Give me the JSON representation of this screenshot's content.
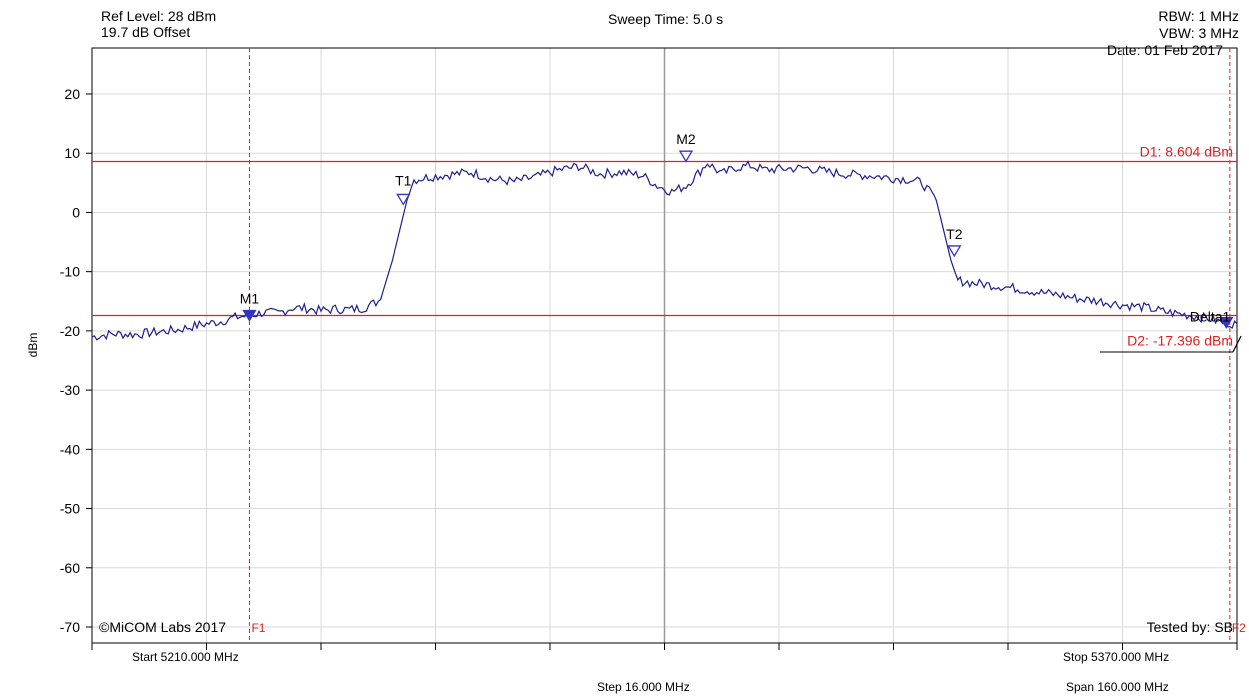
{
  "header": {
    "ref_level": "Ref Level: 28 dBm",
    "offset": "19.7 dB Offset",
    "sweep_time": "Sweep Time: 5.0 s",
    "rbw": "RBW: 1 MHz",
    "vbw": "VBW: 3 MHz",
    "date": "Date: 01 Feb 2017"
  },
  "footer": {
    "start": "Start 5210.000 MHz",
    "stop": "Stop 5370.000 MHz",
    "step": "Step 16.000 MHz",
    "span": "Span 160.000 MHz",
    "copyright": "©MiCOM Labs 2017",
    "tested_by": "Tested by: SB"
  },
  "colors": {
    "trace": "#1f1f8f",
    "marker": "#3333cc",
    "limit": "#e02020",
    "grid": "#d9d9d9",
    "center": "#9a9a9a"
  },
  "chart_data": {
    "type": "line",
    "title": "",
    "xlabel": "",
    "ylabel": "dBm",
    "xlim": [
      5210,
      5370
    ],
    "ylim": [
      -73,
      28
    ],
    "yticks": [
      20,
      10,
      0,
      -10,
      -20,
      -30,
      -40,
      -50,
      -60,
      -70
    ],
    "ytick_labels": [
      "20",
      "10",
      "0",
      "-10",
      "-20",
      "-30",
      "-40",
      "-50",
      "-60",
      "-70"
    ],
    "grid": true,
    "trace_points": [
      [
        5210,
        -21.0
      ],
      [
        5213,
        -20.5
      ],
      [
        5216,
        -20.6
      ],
      [
        5219,
        -20.2
      ],
      [
        5222,
        -19.8
      ],
      [
        5225,
        -19.0
      ],
      [
        5228,
        -18.4
      ],
      [
        5230,
        -17.7
      ],
      [
        5232,
        -17.4
      ],
      [
        5234,
        -16.9
      ],
      [
        5236,
        -17.0
      ],
      [
        5238,
        -16.1
      ],
      [
        5240,
        -16.2
      ],
      [
        5242,
        -16.6
      ],
      [
        5244,
        -16.3
      ],
      [
        5246,
        -16.4
      ],
      [
        5248,
        -16.1
      ],
      [
        5250,
        -15.0
      ],
      [
        5251,
        -12.0
      ],
      [
        5252,
        -8.0
      ],
      [
        5253,
        -3.0
      ],
      [
        5254,
        2.0
      ],
      [
        5255,
        5.5
      ],
      [
        5257,
        6.0
      ],
      [
        5260,
        6.4
      ],
      [
        5263,
        6.8
      ],
      [
        5266,
        5.6
      ],
      [
        5269,
        5.2
      ],
      [
        5272,
        6.0
      ],
      [
        5275,
        7.1
      ],
      [
        5278,
        7.8
      ],
      [
        5281,
        6.5
      ],
      [
        5284,
        6.8
      ],
      [
        5287,
        6.2
      ],
      [
        5289,
        4.5
      ],
      [
        5291,
        3.5
      ],
      [
        5293,
        4.5
      ],
      [
        5295,
        7.0
      ],
      [
        5296,
        8.4
      ],
      [
        5298,
        6.5
      ],
      [
        5300,
        7.6
      ],
      [
        5302,
        7.9
      ],
      [
        5304,
        7.2
      ],
      [
        5307,
        7.4
      ],
      [
        5310,
        7.5
      ],
      [
        5313,
        6.8
      ],
      [
        5316,
        6.4
      ],
      [
        5319,
        6.2
      ],
      [
        5322,
        5.8
      ],
      [
        5324,
        5.6
      ],
      [
        5326,
        5.0
      ],
      [
        5328,
        2.0
      ],
      [
        5329,
        -3.0
      ],
      [
        5330,
        -8.0
      ],
      [
        5331,
        -11.5
      ],
      [
        5333,
        -11.9
      ],
      [
        5336,
        -12.3
      ],
      [
        5339,
        -12.8
      ],
      [
        5342,
        -13.4
      ],
      [
        5345,
        -13.9
      ],
      [
        5348,
        -14.6
      ],
      [
        5351,
        -15.0
      ],
      [
        5354,
        -15.6
      ],
      [
        5357,
        -16.0
      ],
      [
        5360,
        -16.8
      ],
      [
        5363,
        -17.3
      ],
      [
        5366,
        -17.9
      ],
      [
        5368,
        -18.6
      ],
      [
        5370,
        -18.8
      ]
    ],
    "markers": [
      {
        "name": "M1",
        "x": 5232,
        "y": -17.4,
        "filled": true
      },
      {
        "name": "T1",
        "x": 5253.5,
        "y": 2.2,
        "filled": false
      },
      {
        "name": "M2",
        "x": 5293,
        "y": 9.5,
        "filled": false
      },
      {
        "name": "T2",
        "x": 5330.5,
        "y": -6.5,
        "filled": false
      },
      {
        "name": "Delta1",
        "x": 5368.5,
        "y": -18.6,
        "filled": true
      }
    ],
    "reference_lines": [
      {
        "label": "D1: 8.604 dBm",
        "y": 8.604
      },
      {
        "label": "D2: -17.396 dBm",
        "y": -17.396
      }
    ],
    "vertical_markers": [
      {
        "label": "F1",
        "x": 5232
      },
      {
        "label": "F2",
        "x": 5369
      }
    ]
  }
}
